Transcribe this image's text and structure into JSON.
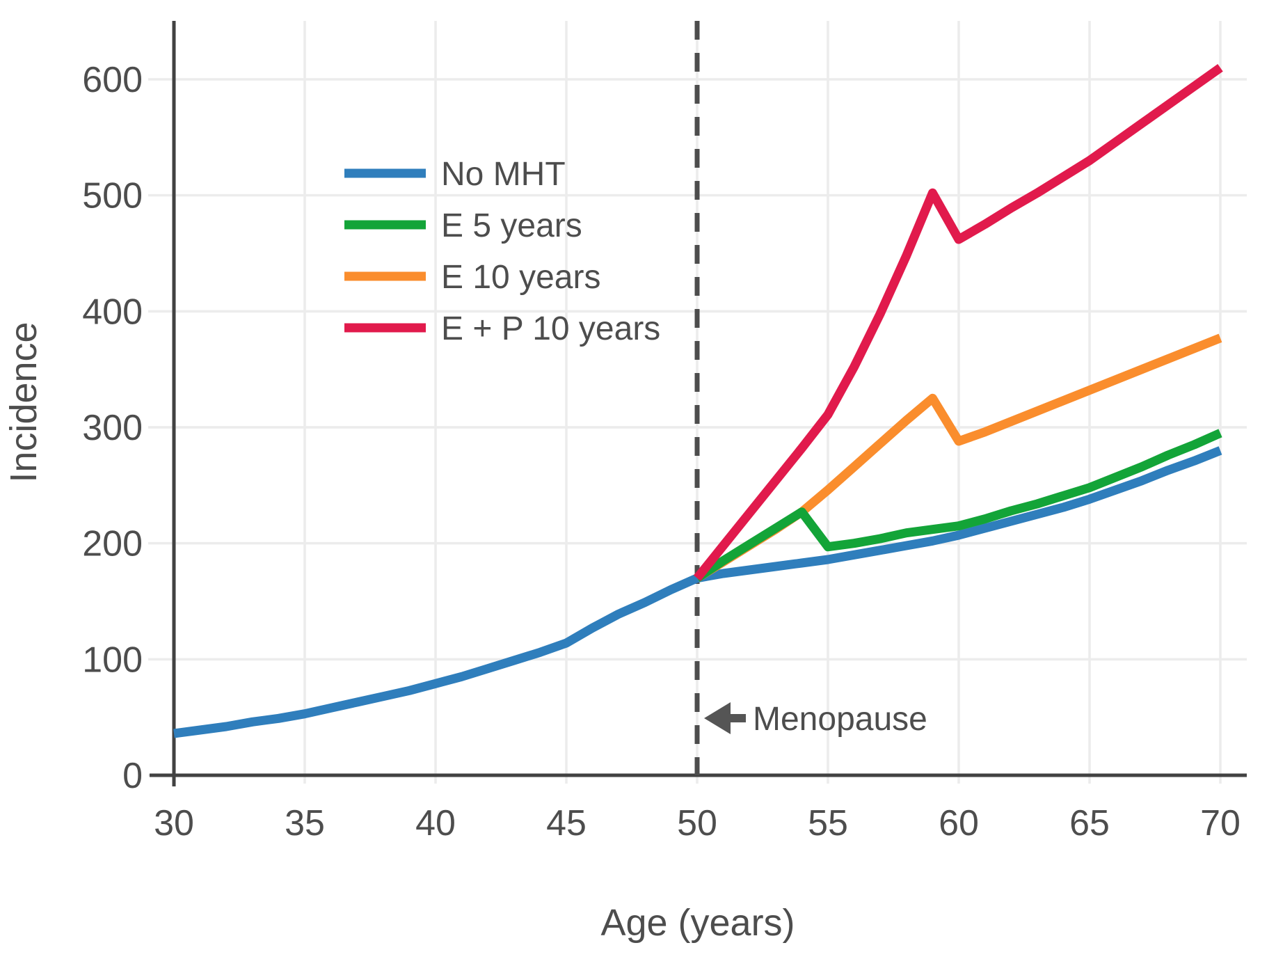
{
  "chart_data": {
    "type": "line",
    "title": "",
    "xlabel": "Age (years)",
    "ylabel": "Incidence",
    "xlim": [
      30,
      70
    ],
    "ylim": [
      0,
      600
    ],
    "xticks": [
      30,
      35,
      40,
      45,
      50,
      55,
      60,
      65,
      70
    ],
    "yticks": [
      0,
      100,
      200,
      300,
      400,
      500,
      600
    ],
    "grid": true,
    "legend_position": "upper-left-inside",
    "colors": {
      "grid": "#ececec",
      "spine": "#424242",
      "text": "#4d4d4d",
      "annotation": "#555555"
    },
    "series": [
      {
        "name": "No MHT",
        "color": "#2f7ebc",
        "zorder": 1,
        "points": [
          [
            30,
            36
          ],
          [
            31,
            39
          ],
          [
            32,
            42
          ],
          [
            33,
            46
          ],
          [
            34,
            49
          ],
          [
            35,
            53
          ],
          [
            36,
            58
          ],
          [
            37,
            63
          ],
          [
            38,
            68
          ],
          [
            39,
            73
          ],
          [
            40,
            79
          ],
          [
            41,
            85
          ],
          [
            42,
            92
          ],
          [
            43,
            99
          ],
          [
            44,
            106
          ],
          [
            45,
            114
          ],
          [
            46,
            127
          ],
          [
            47,
            139
          ],
          [
            48,
            149
          ],
          [
            49,
            160
          ],
          [
            50,
            170
          ],
          [
            51,
            174
          ],
          [
            52,
            177
          ],
          [
            53,
            180
          ],
          [
            54,
            183
          ],
          [
            55,
            186
          ],
          [
            56,
            190
          ],
          [
            57,
            194
          ],
          [
            58,
            198
          ],
          [
            59,
            202
          ],
          [
            60,
            207
          ],
          [
            61,
            213
          ],
          [
            62,
            219
          ],
          [
            63,
            225
          ],
          [
            64,
            231
          ],
          [
            65,
            238
          ],
          [
            66,
            246
          ],
          [
            67,
            254
          ],
          [
            68,
            263
          ],
          [
            69,
            271
          ],
          [
            70,
            280
          ]
        ]
      },
      {
        "name": "E 5 years",
        "color": "#13a438",
        "zorder": 3,
        "points": [
          [
            50,
            170
          ],
          [
            51,
            185
          ],
          [
            52,
            199
          ],
          [
            53,
            213
          ],
          [
            54,
            227
          ],
          [
            55,
            197
          ],
          [
            56,
            200
          ],
          [
            57,
            204
          ],
          [
            58,
            209
          ],
          [
            59,
            212
          ],
          [
            60,
            215
          ],
          [
            61,
            221
          ],
          [
            62,
            228
          ],
          [
            63,
            234
          ],
          [
            64,
            241
          ],
          [
            65,
            248
          ],
          [
            66,
            257
          ],
          [
            67,
            266
          ],
          [
            68,
            276
          ],
          [
            69,
            285
          ],
          [
            70,
            295
          ]
        ]
      },
      {
        "name": "E 10 years",
        "color": "#fa8d2d",
        "zorder": 2,
        "points": [
          [
            50,
            170
          ],
          [
            51,
            184
          ],
          [
            52,
            198
          ],
          [
            53,
            212
          ],
          [
            54,
            227
          ],
          [
            55,
            246
          ],
          [
            56,
            266
          ],
          [
            57,
            286
          ],
          [
            58,
            306
          ],
          [
            59,
            325
          ],
          [
            60,
            288
          ],
          [
            61,
            296
          ],
          [
            62,
            305
          ],
          [
            63,
            314
          ],
          [
            64,
            323
          ],
          [
            65,
            332
          ],
          [
            66,
            341
          ],
          [
            67,
            350
          ],
          [
            68,
            359
          ],
          [
            69,
            368
          ],
          [
            70,
            377
          ]
        ]
      },
      {
        "name": "E + P 10 years",
        "color": "#e11a4c",
        "zorder": 4,
        "points": [
          [
            50,
            170
          ],
          [
            51,
            198
          ],
          [
            52,
            226
          ],
          [
            53,
            254
          ],
          [
            54,
            282
          ],
          [
            55,
            311
          ],
          [
            56,
            352
          ],
          [
            57,
            398
          ],
          [
            58,
            448
          ],
          [
            59,
            502
          ],
          [
            60,
            462
          ],
          [
            61,
            475
          ],
          [
            62,
            489
          ],
          [
            63,
            502
          ],
          [
            64,
            516
          ],
          [
            65,
            530
          ],
          [
            66,
            546
          ],
          [
            67,
            562
          ],
          [
            68,
            578
          ],
          [
            69,
            594
          ],
          [
            70,
            610
          ]
        ]
      }
    ],
    "annotation": {
      "label": "Menopause",
      "x": 50,
      "arrow": "left"
    }
  }
}
